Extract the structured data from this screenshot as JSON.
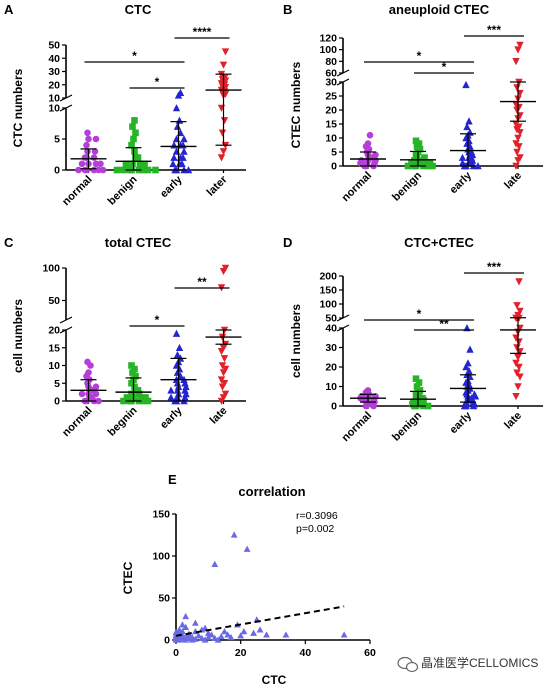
{
  "colors": {
    "normal": "#b43fd8",
    "benign": "#27b427",
    "early": "#2424d0",
    "late": "#e0202a",
    "corr": "#6a6ae6"
  },
  "watermark": {
    "text": "晶准医学CELLOMICS"
  },
  "chart_data": [
    {
      "type": "scatter",
      "letter": "A",
      "title": "CTC",
      "ylabel": "CTC numbers",
      "categories": [
        "normal",
        "benign",
        "early",
        "later"
      ],
      "broken_axis": true,
      "ylim_lower": [
        0,
        10
      ],
      "ylim_upper": [
        10,
        50
      ],
      "yticks_lower": [
        0,
        5,
        10
      ],
      "yticks_upper": [
        10,
        20,
        30,
        40,
        50
      ],
      "mean": [
        1.8,
        1.4,
        3.8,
        16
      ],
      "sd": [
        1.6,
        2.2,
        4.0,
        12
      ],
      "points": [
        [
          0,
          0,
          0,
          0,
          0,
          0,
          1,
          1,
          1,
          1,
          2,
          2,
          2,
          3,
          3,
          4,
          5,
          5,
          6
        ],
        [
          0,
          0,
          0,
          0,
          0,
          0,
          0,
          0,
          1,
          1,
          1,
          1,
          2,
          2,
          3,
          4,
          5,
          6,
          7,
          8
        ],
        [
          0,
          0,
          0,
          0,
          1,
          1,
          1,
          2,
          2,
          2,
          3,
          3,
          4,
          4,
          4,
          5,
          5,
          6,
          7,
          8,
          10,
          12,
          14
        ],
        [
          2,
          3,
          4,
          6,
          8,
          10,
          12,
          13,
          14,
          15,
          16,
          17,
          18,
          19,
          20,
          21,
          22,
          23,
          24,
          25,
          28,
          35,
          45
        ]
      ],
      "significance": [
        {
          "from": 0,
          "to": 2,
          "label": "*"
        },
        {
          "from": 1,
          "to": 2,
          "label": "*"
        },
        {
          "from": 2,
          "to": 3,
          "label": "****"
        }
      ]
    },
    {
      "type": "scatter",
      "letter": "B",
      "title": "aneuploid CTEC",
      "ylabel": "CTEC numbers",
      "categories": [
        "normal",
        "benign",
        "early",
        "late"
      ],
      "broken_axis": true,
      "ylim_lower": [
        0,
        30
      ],
      "ylim_upper": [
        60,
        120
      ],
      "yticks_lower": [
        0,
        5,
        10,
        15,
        20,
        25,
        30
      ],
      "yticks_upper": [
        60,
        80,
        100,
        120
      ],
      "mean": [
        2.5,
        2.2,
        5.5,
        23
      ],
      "sd": [
        2.5,
        3,
        6,
        7
      ],
      "points": [
        [
          0,
          0,
          0,
          1,
          1,
          1,
          2,
          2,
          2,
          3,
          3,
          4,
          4,
          5,
          6,
          7,
          8,
          11
        ],
        [
          0,
          0,
          0,
          0,
          0,
          0,
          1,
          1,
          1,
          1,
          2,
          2,
          2,
          3,
          3,
          4,
          5,
          6,
          7,
          8,
          9
        ],
        [
          0,
          0,
          0,
          0,
          1,
          1,
          1,
          2,
          2,
          3,
          3,
          3,
          4,
          4,
          5,
          5,
          6,
          7,
          8,
          9,
          10,
          11,
          12,
          14,
          16,
          29
        ],
        [
          0,
          2,
          3,
          5,
          7,
          8,
          10,
          12,
          13,
          14,
          15,
          17,
          18,
          20,
          21,
          22,
          24,
          26,
          28,
          30,
          80,
          100,
          108
        ]
      ],
      "significance": [
        {
          "from": 0,
          "to": 2,
          "label": "*"
        },
        {
          "from": 1,
          "to": 2,
          "label": "*"
        },
        {
          "from": 2,
          "to": 3,
          "label": "***"
        }
      ]
    },
    {
      "type": "scatter",
      "letter": "C",
      "title": "total CTEC",
      "ylabel": "cell numbers",
      "categories": [
        "normal",
        "begnin",
        "early",
        "late"
      ],
      "broken_axis": true,
      "ylim_lower": [
        0,
        20
      ],
      "ylim_upper": [
        20,
        100
      ],
      "yticks_lower": [
        0,
        5,
        10,
        15,
        20
      ],
      "yticks_upper": [
        50,
        100
      ],
      "mean": [
        3,
        2.5,
        6,
        18
      ],
      "sd": [
        3,
        4,
        6,
        2
      ],
      "points": [
        [
          0,
          0,
          0,
          0,
          1,
          1,
          2,
          2,
          2,
          3,
          3,
          4,
          4,
          5,
          6,
          7,
          8,
          10,
          11
        ],
        [
          0,
          0,
          0,
          0,
          0,
          0,
          1,
          1,
          1,
          1,
          2,
          2,
          3,
          3,
          4,
          5,
          6,
          7,
          8,
          9,
          10
        ],
        [
          0,
          0,
          0,
          1,
          1,
          1,
          2,
          2,
          3,
          3,
          3,
          4,
          4,
          5,
          5,
          6,
          6,
          7,
          8,
          9,
          10,
          11,
          12,
          13,
          15,
          19
        ],
        [
          0,
          1,
          2,
          4,
          5,
          6,
          8,
          9,
          10,
          12,
          14,
          15,
          16,
          18,
          20,
          70,
          95,
          105
        ]
      ],
      "significance": [
        {
          "from": 1,
          "to": 2,
          "label": "*"
        },
        {
          "from": 2,
          "to": 3,
          "label": "**"
        }
      ]
    },
    {
      "type": "scatter",
      "letter": "D",
      "title": "CTC+CTEC",
      "ylabel": "cell numbers",
      "categories": [
        "normal",
        "benign",
        "early",
        "late"
      ],
      "broken_axis": true,
      "ylim_lower": [
        0,
        40
      ],
      "ylim_upper": [
        50,
        200
      ],
      "yticks_lower": [
        0,
        10,
        20,
        30,
        40
      ],
      "yticks_upper": [
        50,
        100,
        150,
        200
      ],
      "mean": [
        4,
        3.5,
        9,
        39
      ],
      "sd": [
        2,
        4,
        7,
        12
      ],
      "points": [
        [
          0,
          0,
          1,
          2,
          2,
          3,
          3,
          3,
          4,
          4,
          4,
          5,
          5,
          5,
          6,
          7,
          8
        ],
        [
          0,
          0,
          0,
          0,
          1,
          1,
          1,
          2,
          2,
          2,
          3,
          3,
          4,
          4,
          5,
          6,
          7,
          8,
          10,
          12,
          14
        ],
        [
          0,
          0,
          0,
          1,
          1,
          2,
          2,
          3,
          3,
          4,
          4,
          5,
          5,
          6,
          6,
          7,
          8,
          9,
          10,
          11,
          12,
          13,
          15,
          16,
          18,
          20,
          22,
          29,
          40
        ],
        [
          5,
          10,
          15,
          17,
          20,
          22,
          25,
          28,
          30,
          33,
          35,
          38,
          40,
          42,
          45,
          48,
          60,
          75,
          95,
          180
        ]
      ],
      "significance": [
        {
          "from": 0,
          "to": 2,
          "label": "*"
        },
        {
          "from": 1,
          "to": 2,
          "label": "**"
        },
        {
          "from": 2,
          "to": 3,
          "label": "***"
        }
      ]
    },
    {
      "type": "scatter",
      "letter": "E",
      "title": "correlation",
      "xlabel": "CTC",
      "ylabel": "CTEC",
      "xlim": [
        0,
        60
      ],
      "ylim": [
        0,
        150
      ],
      "xticks": [
        0,
        20,
        40,
        60
      ],
      "yticks": [
        0,
        50,
        100,
        150
      ],
      "stats": [
        "r=0.3096",
        "p=0.002"
      ],
      "trend": [
        [
          0,
          5
        ],
        [
          52,
          40
        ]
      ],
      "points": [
        [
          0,
          0
        ],
        [
          0,
          2
        ],
        [
          0,
          4
        ],
        [
          0,
          6
        ],
        [
          1,
          0
        ],
        [
          1,
          3
        ],
        [
          1,
          8
        ],
        [
          1,
          12
        ],
        [
          2,
          1
        ],
        [
          2,
          5
        ],
        [
          2,
          10
        ],
        [
          3,
          0
        ],
        [
          3,
          4
        ],
        [
          3,
          15
        ],
        [
          4,
          2
        ],
        [
          4,
          7
        ],
        [
          5,
          0
        ],
        [
          5,
          3
        ],
        [
          6,
          1
        ],
        [
          6,
          20
        ],
        [
          7,
          5
        ],
        [
          8,
          2
        ],
        [
          8,
          12
        ],
        [
          9,
          0
        ],
        [
          10,
          3
        ],
        [
          10,
          8
        ],
        [
          11,
          6
        ],
        [
          12,
          2
        ],
        [
          12,
          90
        ],
        [
          13,
          0
        ],
        [
          14,
          4
        ],
        [
          15,
          10
        ],
        [
          16,
          6
        ],
        [
          17,
          3
        ],
        [
          18,
          125
        ],
        [
          19,
          18
        ],
        [
          20,
          5
        ],
        [
          21,
          10
        ],
        [
          22,
          108
        ],
        [
          24,
          8
        ],
        [
          25,
          24
        ],
        [
          26,
          12
        ],
        [
          28,
          6
        ],
        [
          34,
          6
        ],
        [
          52,
          6
        ],
        [
          3,
          28
        ],
        [
          2,
          18
        ],
        [
          6,
          10
        ],
        [
          9,
          14
        ],
        [
          0,
          9
        ]
      ]
    }
  ]
}
